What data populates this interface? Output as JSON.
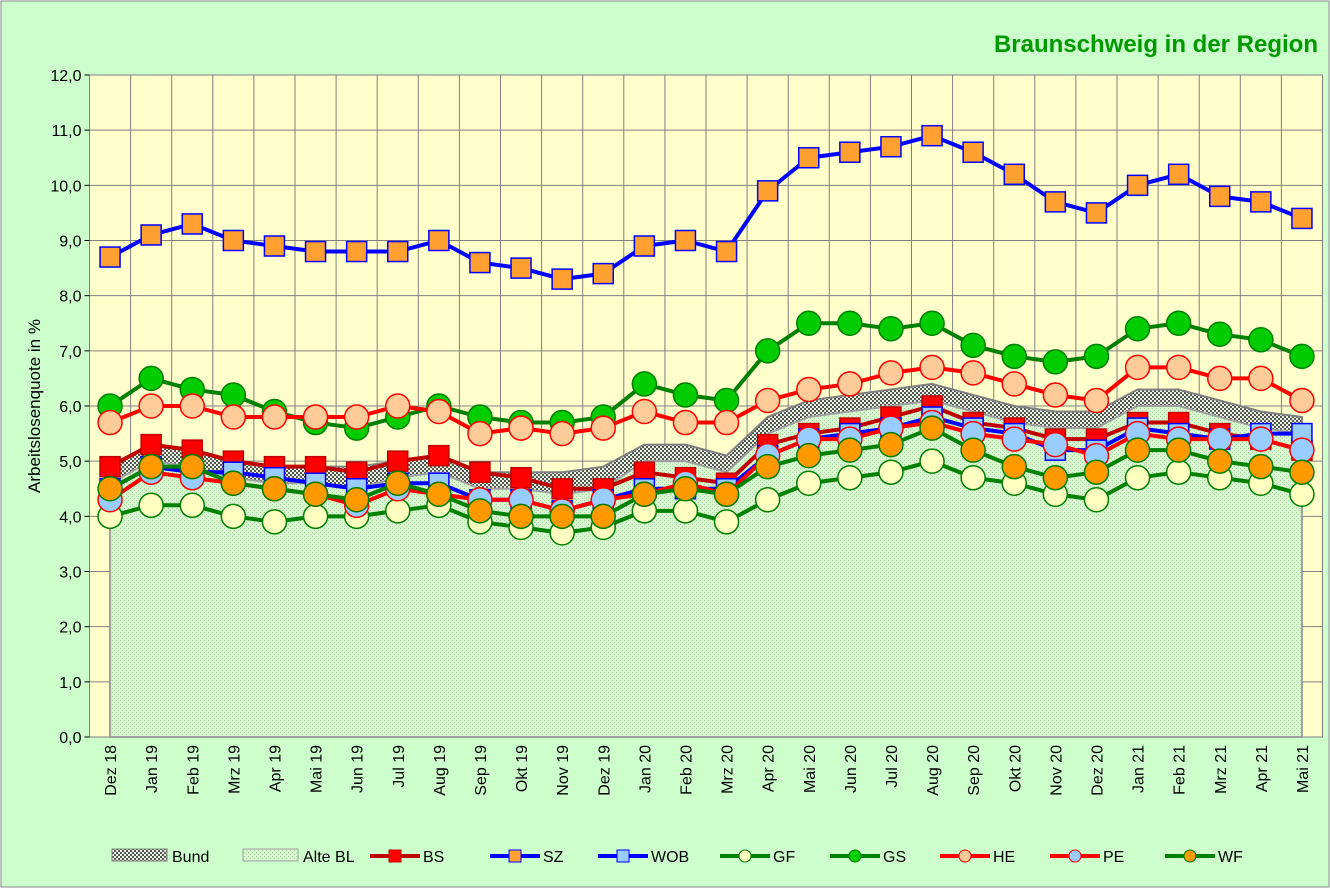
{
  "chart_data": {
    "type": "line",
    "title": "Braunschweig in der Region",
    "y_label": "Arbeitslosenquote in %",
    "categories": [
      "Dez 18",
      "Jan 19",
      "Feb 19",
      "Mrz 19",
      "Apr 19",
      "Mai 19",
      "Jun 19",
      "Jul 19",
      "Aug 19",
      "Sep 19",
      "Okt 19",
      "Nov 19",
      "Dez 19",
      "Jan 20",
      "Feb 20",
      "Mrz 20",
      "Apr 20",
      "Mai 20",
      "Jun 20",
      "Jul 20",
      "Aug 20",
      "Sep 20",
      "Okt 20",
      "Nov 20",
      "Dez 20",
      "Jan 21",
      "Feb 21",
      "Mrz 21",
      "Apr 21",
      "Mai 21"
    ],
    "ylim": [
      0,
      12
    ],
    "yticks": [
      {
        "value": 0,
        "label": "0,0"
      },
      {
        "value": 1,
        "label": "1,0"
      },
      {
        "value": 2,
        "label": "2,0"
      },
      {
        "value": 3,
        "label": "3,0"
      },
      {
        "value": 4,
        "label": "4,0"
      },
      {
        "value": 5,
        "label": "5,0"
      },
      {
        "value": 6,
        "label": "6,0"
      },
      {
        "value": 7,
        "label": "7,0"
      },
      {
        "value": 8,
        "label": "8,0"
      },
      {
        "value": 9,
        "label": "9,0"
      },
      {
        "value": 10,
        "label": "10,0"
      },
      {
        "value": 11,
        "label": "11,0"
      },
      {
        "value": 12,
        "label": "12,0"
      }
    ],
    "grid": true,
    "legend": "bottom",
    "series": [
      {
        "name": "Bund",
        "kind": "area",
        "color": "#808080",
        "values": [
          4.9,
          5.3,
          5.2,
          5.0,
          4.9,
          4.9,
          4.9,
          5.0,
          5.1,
          4.8,
          4.8,
          4.8,
          4.9,
          5.3,
          5.3,
          5.1,
          5.8,
          6.1,
          6.2,
          6.3,
          6.4,
          6.2,
          6.0,
          5.9,
          5.9,
          6.3,
          6.3,
          6.1,
          5.9,
          5.8
        ]
      },
      {
        "name": "Alte BL",
        "kind": "area",
        "color": "#a0a0a0",
        "values": [
          4.6,
          5.0,
          4.9,
          4.7,
          4.6,
          4.6,
          4.5,
          4.7,
          4.8,
          4.5,
          4.5,
          4.4,
          4.5,
          5.0,
          5.0,
          4.8,
          5.5,
          5.8,
          5.9,
          6.0,
          6.1,
          5.9,
          5.7,
          5.6,
          5.6,
          6.0,
          6.0,
          5.8,
          5.6,
          5.5
        ]
      },
      {
        "name": "BS",
        "kind": "line",
        "marker": "square",
        "color": "#c00000",
        "marker_color": "#ff0000",
        "values": [
          4.9,
          5.3,
          5.2,
          5.0,
          4.9,
          4.9,
          4.8,
          5.0,
          5.1,
          4.8,
          4.7,
          4.5,
          4.5,
          4.8,
          4.7,
          4.6,
          5.3,
          5.5,
          5.6,
          5.8,
          6.0,
          5.7,
          5.6,
          5.4,
          5.4,
          5.7,
          5.7,
          5.5,
          5.4,
          5.2
        ]
      },
      {
        "name": "SZ",
        "kind": "line",
        "marker": "square",
        "color": "#0000ff",
        "marker_color": "#ffa030",
        "values": [
          8.7,
          9.1,
          9.3,
          9.0,
          8.9,
          8.8,
          8.8,
          8.8,
          9.0,
          8.6,
          8.5,
          8.3,
          8.4,
          8.9,
          9.0,
          8.8,
          9.9,
          10.5,
          10.6,
          10.7,
          10.9,
          10.6,
          10.2,
          9.7,
          9.5,
          10.0,
          10.2,
          9.8,
          9.7,
          9.4
        ]
      },
      {
        "name": "WOB",
        "kind": "line",
        "marker": "square",
        "color": "#0000ff",
        "marker_color": "#99ccff",
        "values": [
          4.5,
          4.9,
          4.8,
          4.8,
          4.7,
          4.6,
          4.5,
          4.6,
          4.6,
          4.3,
          4.3,
          4.1,
          4.3,
          4.5,
          4.5,
          4.5,
          5.1,
          5.4,
          5.5,
          5.6,
          5.8,
          5.6,
          5.5,
          5.2,
          5.2,
          5.6,
          5.5,
          5.4,
          5.5,
          5.5
        ]
      },
      {
        "name": "GF",
        "kind": "line",
        "marker": "circle",
        "color": "#008000",
        "marker_color": "#ffffc0",
        "values": [
          4.0,
          4.2,
          4.2,
          4.0,
          3.9,
          4.0,
          4.0,
          4.1,
          4.2,
          3.9,
          3.8,
          3.7,
          3.8,
          4.1,
          4.1,
          3.9,
          4.3,
          4.6,
          4.7,
          4.8,
          5.0,
          4.7,
          4.6,
          4.4,
          4.3,
          4.7,
          4.8,
          4.7,
          4.6,
          4.4
        ]
      },
      {
        "name": "GS",
        "kind": "line",
        "marker": "circle",
        "color": "#008000",
        "marker_color": "#00cc00",
        "values": [
          6.0,
          6.5,
          6.3,
          6.2,
          5.9,
          5.7,
          5.6,
          5.8,
          6.0,
          5.8,
          5.7,
          5.7,
          5.8,
          6.4,
          6.2,
          6.1,
          7.0,
          7.5,
          7.5,
          7.4,
          7.5,
          7.1,
          6.9,
          6.8,
          6.9,
          7.4,
          7.5,
          7.3,
          7.2,
          6.9
        ]
      },
      {
        "name": "HE",
        "kind": "line",
        "marker": "circle",
        "color": "#ff0000",
        "marker_color": "#ffcc99",
        "values": [
          5.7,
          6.0,
          6.0,
          5.8,
          5.8,
          5.8,
          5.8,
          6.0,
          5.9,
          5.5,
          5.6,
          5.5,
          5.6,
          5.9,
          5.7,
          5.7,
          6.1,
          6.3,
          6.4,
          6.6,
          6.7,
          6.6,
          6.4,
          6.2,
          6.1,
          6.7,
          6.7,
          6.5,
          6.5,
          6.1
        ]
      },
      {
        "name": "PE",
        "kind": "line",
        "marker": "circle",
        "color": "#ff0000",
        "marker_color": "#99ccff",
        "values": [
          4.3,
          4.8,
          4.7,
          4.6,
          4.5,
          4.4,
          4.2,
          4.5,
          4.4,
          4.3,
          4.3,
          4.1,
          4.3,
          4.4,
          4.6,
          4.4,
          5.1,
          5.4,
          5.4,
          5.6,
          5.7,
          5.5,
          5.4,
          5.3,
          5.1,
          5.5,
          5.4,
          5.4,
          5.4,
          5.2
        ]
      },
      {
        "name": "WF",
        "kind": "line",
        "marker": "circle",
        "color": "#008000",
        "marker_color": "#ff9900",
        "values": [
          4.5,
          4.9,
          4.9,
          4.6,
          4.5,
          4.4,
          4.3,
          4.6,
          4.4,
          4.1,
          4.0,
          4.0,
          4.0,
          4.4,
          4.5,
          4.4,
          4.9,
          5.1,
          5.2,
          5.3,
          5.6,
          5.2,
          4.9,
          4.7,
          4.8,
          5.2,
          5.2,
          5.0,
          4.9,
          4.8
        ]
      }
    ]
  }
}
